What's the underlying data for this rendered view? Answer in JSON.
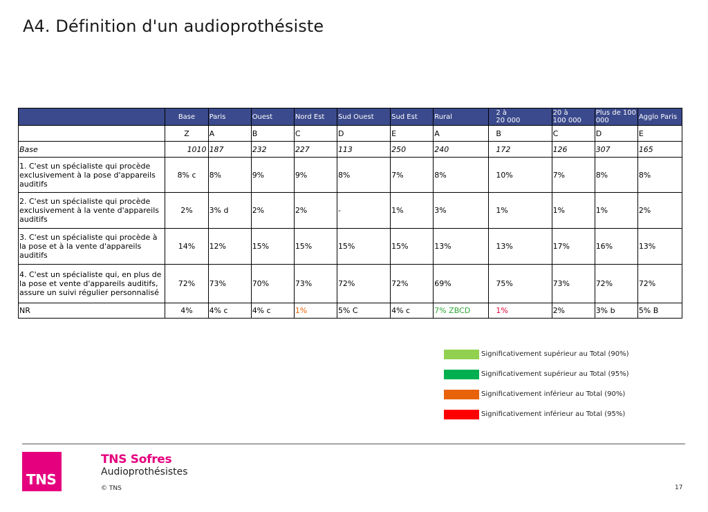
{
  "title": "A4. Définition d'un audioprothésiste",
  "table": {
    "headers": [
      "Base",
      "Paris",
      "Ouest",
      "Nord Est",
      "Sud Ouest",
      "Sud Est",
      "Rural",
      "2 à\n20 000",
      "20 à\n100 000",
      "Plus de 100\n000",
      "Agglo Paris"
    ],
    "letters": [
      "Z",
      "A",
      "B",
      "C",
      "D",
      "E",
      "A",
      "B",
      "C",
      "D",
      "E"
    ],
    "base_label": "Base",
    "base_values": [
      "1010",
      "187",
      "232",
      "227",
      "113",
      "250",
      "240",
      "172",
      "126",
      "307",
      "165"
    ],
    "rows": [
      {
        "label": "1. C'est un spécialiste qui procède exclusivement à la pose d'appareils auditifs",
        "values": [
          "8% c",
          "8%",
          "9%",
          "9%",
          "8%",
          "7%",
          "8%",
          "10%",
          "7%",
          "8%",
          "8%"
        ]
      },
      {
        "label": "2. C'est un spécialiste qui procède exclusivement à la vente d'appareils auditifs",
        "values": [
          "2%",
          "3% d",
          "2%",
          "2%",
          "-",
          "1%",
          "3%",
          "1%",
          "1%",
          "1%",
          "2%"
        ]
      },
      {
        "label": "3. C'est un spécialiste qui procède à la pose et à la vente d'appareils auditifs",
        "values": [
          "14%",
          "12%",
          "15%",
          "15%",
          "15%",
          "15%",
          "13%",
          "13%",
          "17%",
          "16%",
          "13%"
        ]
      },
      {
        "label": "4. C'est un spécialiste qui, en plus de la pose et vente d'appareils auditifs, assure un suivi régulier personnalisé",
        "values": [
          "72%",
          "73%",
          "70%",
          "73%",
          "72%",
          "72%",
          "69%",
          "75%",
          "73%",
          "72%",
          "72%"
        ]
      },
      {
        "label": "NR",
        "values": [
          "4%",
          "4% c",
          "4% c",
          "1%",
          "5% C",
          "4% c",
          "7% ZBCD",
          "1%",
          "2%",
          "3% b",
          "5% B"
        ]
      }
    ]
  },
  "legend": [
    {
      "label": "Significativement supérieur au Total (90%)",
      "color": "#92d050"
    },
    {
      "label": "Significativement supérieur au Total (95%)",
      "color": "#00b050"
    },
    {
      "label": "Significativement inférieur au Total (90%)",
      "color": "#e8620a"
    },
    {
      "label": "Significativement inférieur au Total (95%)",
      "color": "#ff0000"
    }
  ],
  "footer": {
    "logo_text": "TNS",
    "brand": "TNS Sofres",
    "study": "Audioprothésistes",
    "copyright": "© TNS",
    "page_number": "17"
  },
  "colors": {
    "header_bg": "#3b4a8c",
    "brand_magenta": "#e5007e",
    "sig_up_90": "#2fa535",
    "sig_down_90": "#e8620a",
    "sig_down_95": "#e3003b"
  }
}
